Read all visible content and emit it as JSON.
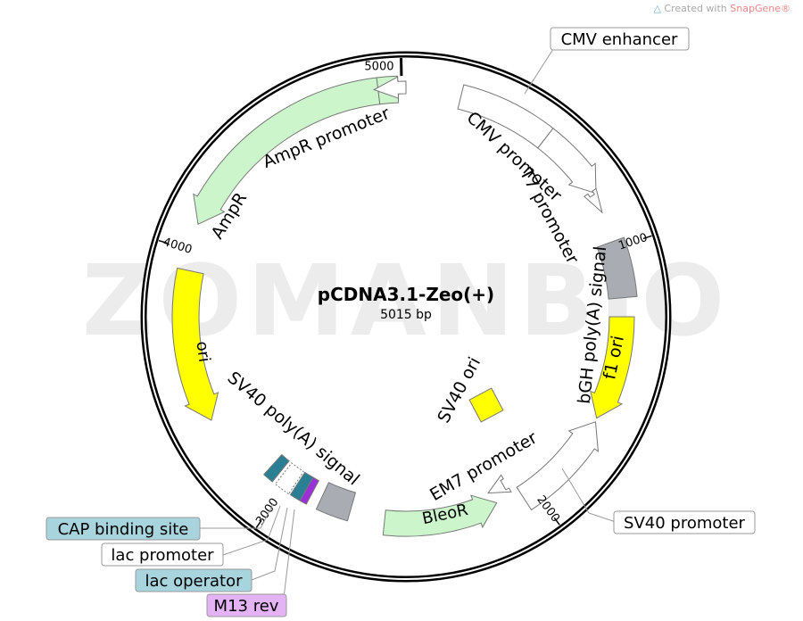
{
  "credit": {
    "prefix": "Created with ",
    "brand": "SnapGene®",
    "icon": "snapgene-logo-icon"
  },
  "watermark": "ZOMANBIO",
  "plasmid": {
    "name": "pCDNA3.1-Zeo(+)",
    "length": "5015 bp",
    "total_bp": 5015
  },
  "ticks": [
    "1000",
    "2000",
    "3000",
    "4000",
    "5000"
  ],
  "features": {
    "cmv_enhancer": "CMV enhancer",
    "cmv_promoter": "CMV promoter",
    "t7_promoter": "T7 promoter",
    "bgh_polya": "bGH poly(A) signal",
    "f1_ori": "f1 ori",
    "sv40_promoter": "SV40 promoter",
    "em7_promoter": "EM7 promoter",
    "bleor": "BleoR",
    "sv40_polya": "SV40 poly(A) signal",
    "cap_site": "CAP binding site",
    "lac_promoter": "lac promoter",
    "lac_operator": "lac operator",
    "m13_rev": "M13 rev",
    "ori": "ori",
    "ampr": "AmpR",
    "ampr_promoter": "AmpR promoter",
    "sv40_ori": "SV40 ori"
  },
  "colors": {
    "promoter": "#ffffff",
    "polya": "#a9acb3",
    "origin": "#ffff00",
    "marker": "#ccf5cc",
    "protein_bind": "#2b7f94",
    "primer": "#9b2fd8",
    "cap_box": "#a8d4de",
    "m13_box": "#e3b3f5"
  }
}
